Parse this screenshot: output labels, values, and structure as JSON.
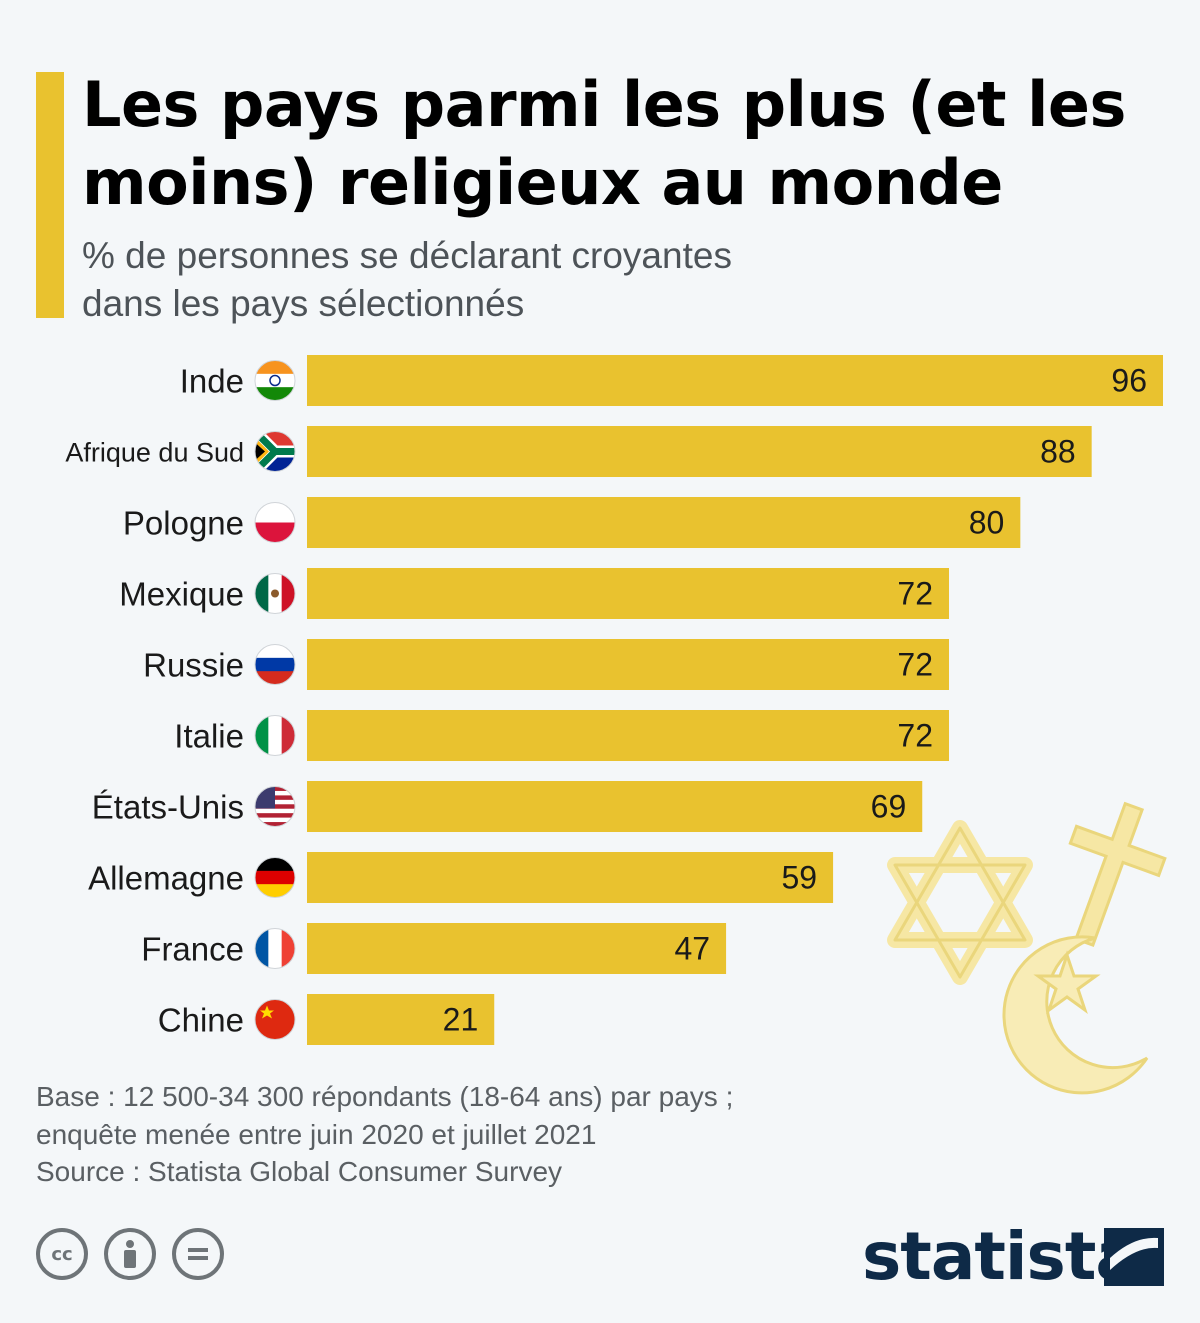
{
  "title": "Les pays parmi les plus (et les moins) religieux au monde",
  "subtitle_line1": "% de personnes se déclarant croyantes",
  "subtitle_line2": "dans les pays sélectionnés",
  "footnote_line1": "Base : 12 500-34 300 répondants (18-64 ans) par pays ;",
  "footnote_line2": "enquête menée entre juin 2020 et juillet 2021",
  "source": "Source : Statista Global Consumer Survey",
  "brand": "statista",
  "cc_icons": [
    "cc-icon",
    "by-icon",
    "nd-icon"
  ],
  "colors": {
    "bar": "#e9c22f",
    "background": "#f4f7f9",
    "brand": "#0e2a47"
  },
  "chart_data": {
    "type": "bar",
    "orientation": "horizontal",
    "categories": [
      "Inde",
      "Afrique du Sud",
      "Pologne",
      "Mexique",
      "Russie",
      "Italie",
      "États-Unis",
      "Allemagne",
      "France",
      "Chine"
    ],
    "values": [
      96,
      88,
      80,
      72,
      72,
      72,
      69,
      59,
      47,
      21
    ],
    "flags": [
      "india-flag-icon",
      "south-africa-flag-icon",
      "poland-flag-icon",
      "mexico-flag-icon",
      "russia-flag-icon",
      "italy-flag-icon",
      "usa-flag-icon",
      "germany-flag-icon",
      "france-flag-icon",
      "china-flag-icon"
    ],
    "xlim": [
      0,
      96
    ],
    "grid": false,
    "legend": "none"
  }
}
